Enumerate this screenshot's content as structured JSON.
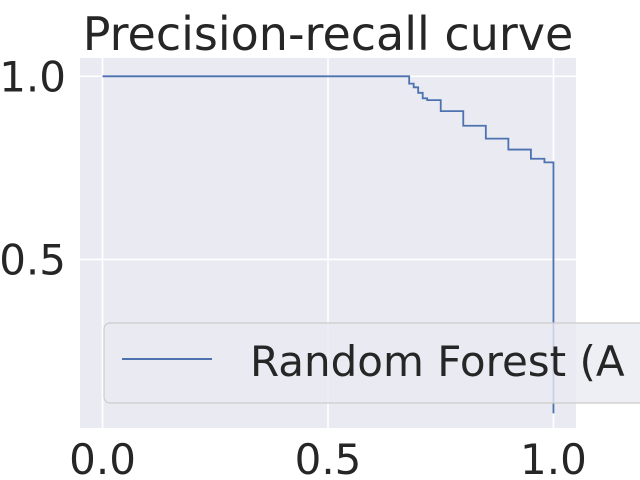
{
  "chart_data": {
    "type": "line",
    "title": "Precision-recall curve",
    "xlabel": "",
    "ylabel": "",
    "xlim": [
      -0.05,
      1.05
    ],
    "ylim": [
      0.04,
      1.05
    ],
    "grid": true,
    "legend_position": "lower-right",
    "x_ticks": [
      "0.0",
      "0.5",
      "1.0"
    ],
    "x_tick_values": [
      0.0,
      0.5,
      1.0
    ],
    "y_ticks": [
      "0.5",
      "1.0"
    ],
    "y_tick_values": [
      0.5,
      1.0
    ],
    "series": [
      {
        "name": "Random Forest (A",
        "color": "#4c72b0",
        "x": [
          0.0,
          0.67,
          0.68,
          0.69,
          0.7,
          0.71,
          0.72,
          0.75,
          0.8,
          0.85,
          0.9,
          0.95,
          0.98,
          1.0,
          1.0
        ],
        "y": [
          1.0,
          1.0,
          0.98,
          0.97,
          0.955,
          0.94,
          0.935,
          0.905,
          0.865,
          0.83,
          0.8,
          0.775,
          0.765,
          0.755,
          0.08
        ]
      }
    ]
  }
}
